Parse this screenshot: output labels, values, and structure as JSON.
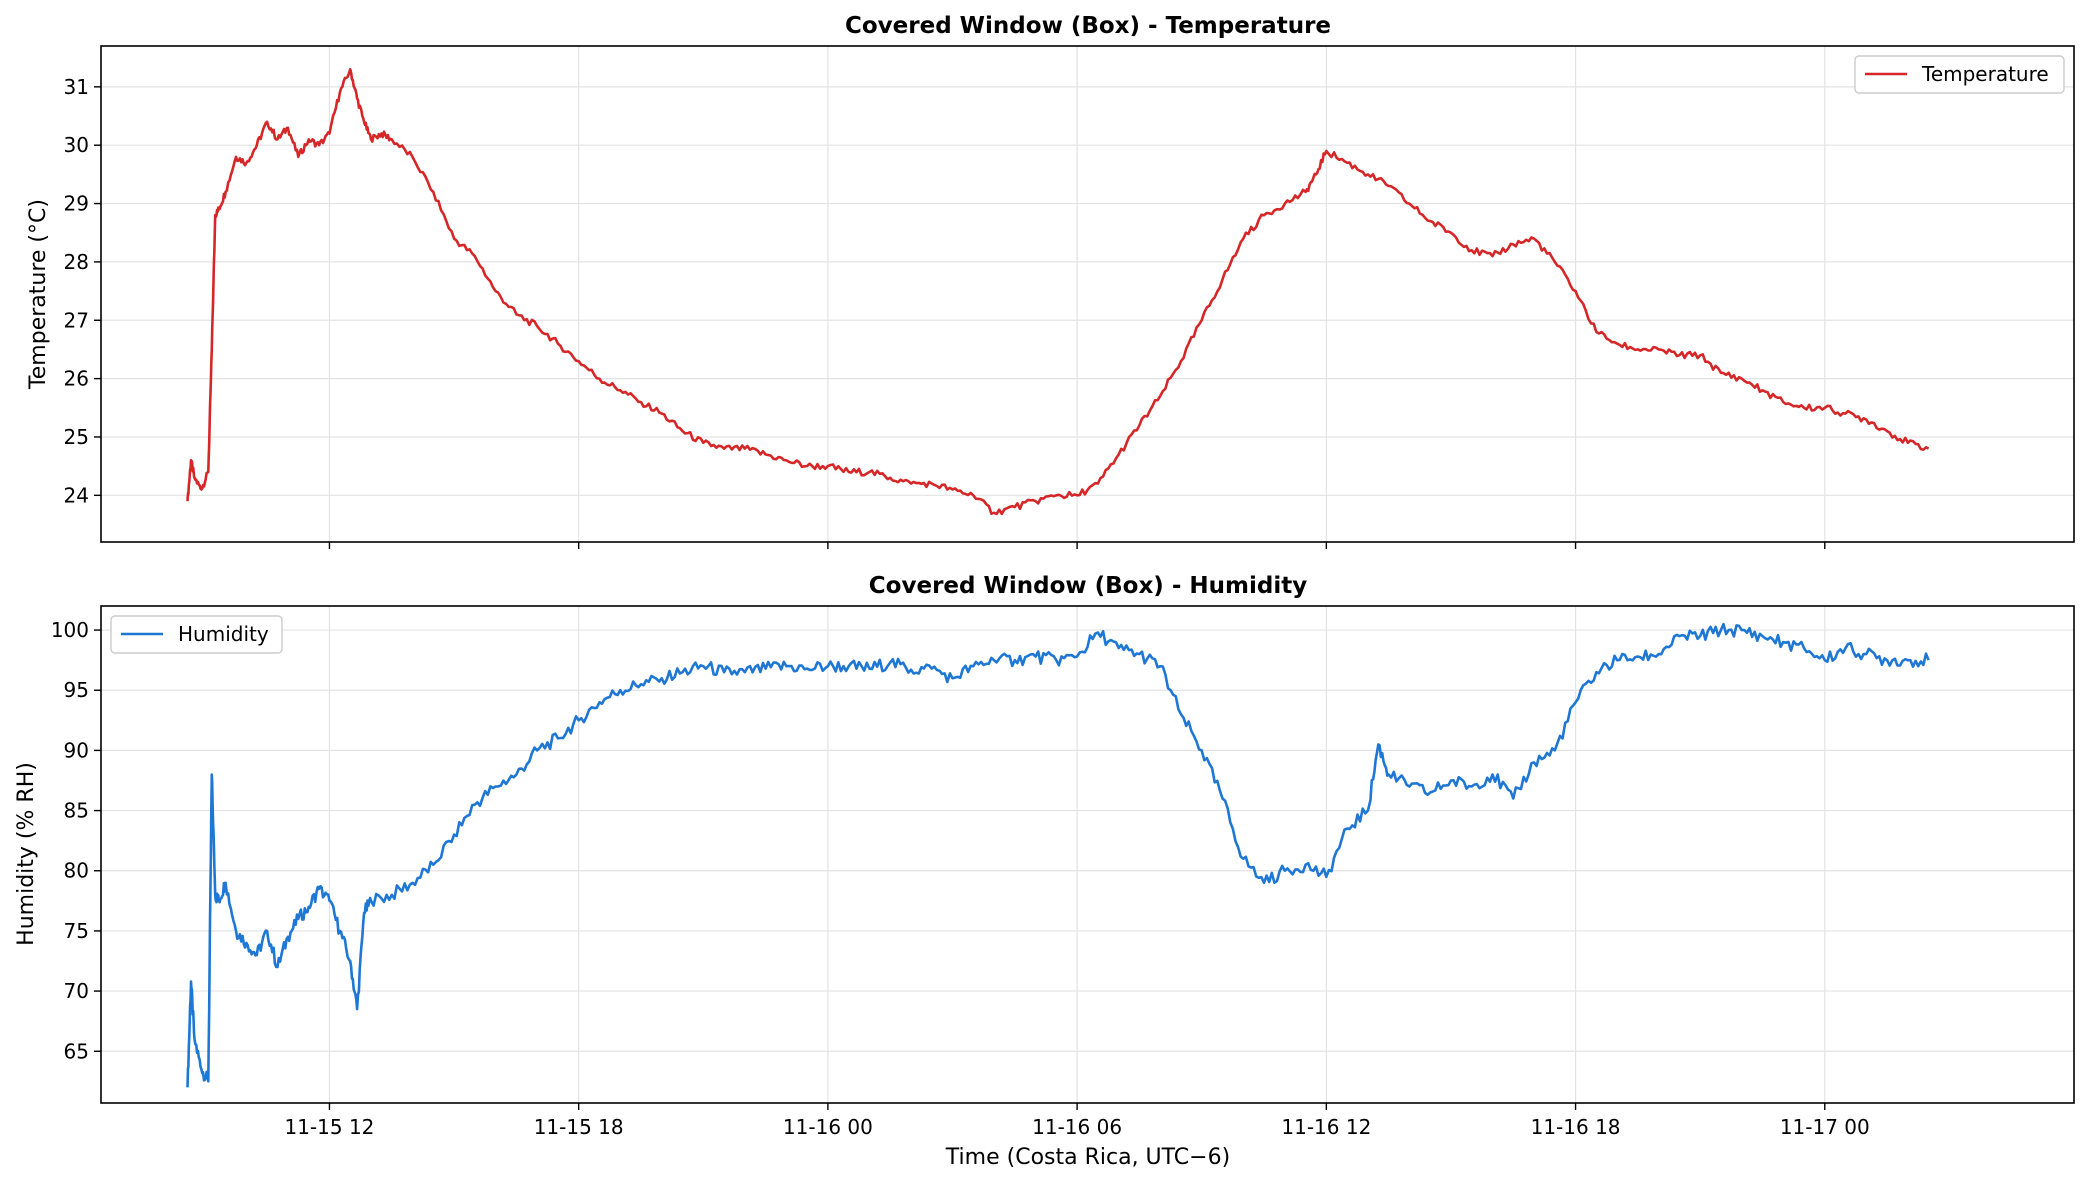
{
  "chart_data": [
    {
      "type": "line",
      "title": "Covered Window (Box) - Temperature",
      "xlabel": "",
      "ylabel": "Temperature (°C)",
      "ylim": [
        23.2,
        31.7
      ],
      "yticks": [
        24,
        25,
        26,
        27,
        28,
        29,
        30,
        31
      ],
      "xlim": [
        "2025-11-15 06:30",
        "2025-11-17 06:00"
      ],
      "xticks": [
        "11-15 12",
        "11-15 18",
        "11-16 00",
        "11-16 06",
        "11-16 12",
        "11-16 18",
        "11-17 00"
      ],
      "xtick_labels_visible": false,
      "grid": true,
      "legend": "top-right",
      "series": [
        {
          "name": "Temperature",
          "color": "#d62728",
          "x": [
            "2025-11-15 08:35",
            "2025-11-15 08:40",
            "2025-11-15 08:45",
            "2025-11-15 08:55",
            "2025-11-15 09:05",
            "2025-11-15 09:10",
            "2025-11-15 09:15",
            "2025-11-15 09:20",
            "2025-11-15 09:30",
            "2025-11-15 09:45",
            "2025-11-15 10:00",
            "2025-11-15 10:15",
            "2025-11-15 10:30",
            "2025-11-15 10:45",
            "2025-11-15 11:00",
            "2025-11-15 11:15",
            "2025-11-15 11:30",
            "2025-11-15 11:45",
            "2025-11-15 12:00",
            "2025-11-15 12:15",
            "2025-11-15 12:30",
            "2025-11-15 12:40",
            "2025-11-15 12:50",
            "2025-11-15 13:00",
            "2025-11-15 13:15",
            "2025-11-15 13:30",
            "2025-11-15 14:00",
            "2025-11-15 14:30",
            "2025-11-15 15:00",
            "2025-11-15 15:30",
            "2025-11-15 16:00",
            "2025-11-15 16:30",
            "2025-11-15 17:00",
            "2025-11-15 17:30",
            "2025-11-15 18:00",
            "2025-11-15 18:30",
            "2025-11-15 19:00",
            "2025-11-15 19:30",
            "2025-11-15 20:00",
            "2025-11-15 20:30",
            "2025-11-15 21:00",
            "2025-11-15 21:30",
            "2025-11-15 22:00",
            "2025-11-15 22:30",
            "2025-11-15 23:00",
            "2025-11-15 23:30",
            "2025-11-16 00:00",
            "2025-11-16 00:30",
            "2025-11-16 01:00",
            "2025-11-16 01:30",
            "2025-11-16 02:00",
            "2025-11-16 02:30",
            "2025-11-16 03:00",
            "2025-11-16 03:30",
            "2025-11-16 04:00",
            "2025-11-16 04:30",
            "2025-11-16 05:00",
            "2025-11-16 05:30",
            "2025-11-16 06:00",
            "2025-11-16 06:30",
            "2025-11-16 07:00",
            "2025-11-16 07:30",
            "2025-11-16 08:00",
            "2025-11-16 08:30",
            "2025-11-16 09:00",
            "2025-11-16 09:30",
            "2025-11-16 10:00",
            "2025-11-16 10:30",
            "2025-11-16 11:00",
            "2025-11-16 11:30",
            "2025-11-16 11:45",
            "2025-11-16 12:00",
            "2025-11-16 12:30",
            "2025-11-16 13:00",
            "2025-11-16 13:30",
            "2025-11-16 14:00",
            "2025-11-16 14:30",
            "2025-11-16 15:00",
            "2025-11-16 15:30",
            "2025-11-16 16:00",
            "2025-11-16 16:30",
            "2025-11-16 17:00",
            "2025-11-16 17:30",
            "2025-11-16 18:00",
            "2025-11-16 18:30",
            "2025-11-16 19:00",
            "2025-11-16 19:30",
            "2025-11-16 20:00",
            "2025-11-16 20:30",
            "2025-11-16 21:00",
            "2025-11-16 21:30",
            "2025-11-16 22:00",
            "2025-11-16 22:30",
            "2025-11-16 23:00",
            "2025-11-16 23:30",
            "2025-11-17 00:00",
            "2025-11-17 00:30",
            "2025-11-17 01:00",
            "2025-11-17 01:30",
            "2025-11-17 02:00",
            "2025-11-17 02:30"
          ],
          "values": [
            23.9,
            24.6,
            24.3,
            24.1,
            24.4,
            26.5,
            28.8,
            28.9,
            29.2,
            29.8,
            29.7,
            30.0,
            30.4,
            30.1,
            30.3,
            29.8,
            30.1,
            30.0,
            30.2,
            30.9,
            31.3,
            30.8,
            30.4,
            30.1,
            30.2,
            30.1,
            29.8,
            29.2,
            28.4,
            28.1,
            27.5,
            27.1,
            26.9,
            26.6,
            26.3,
            26.0,
            25.8,
            25.6,
            25.4,
            25.1,
            24.9,
            24.8,
            24.8,
            24.7,
            24.6,
            24.5,
            24.5,
            24.4,
            24.4,
            24.3,
            24.2,
            24.2,
            24.1,
            24.0,
            23.7,
            23.8,
            23.9,
            24.0,
            24.0,
            24.2,
            24.7,
            25.2,
            25.7,
            26.3,
            27.0,
            27.7,
            28.4,
            28.8,
            29.0,
            29.2,
            29.5,
            29.9,
            29.7,
            29.5,
            29.3,
            29.0,
            28.7,
            28.5,
            28.2,
            28.1,
            28.3,
            28.4,
            28.0,
            27.5,
            26.8,
            26.6,
            26.5,
            26.5,
            26.4,
            26.4,
            26.1,
            26.0,
            25.8,
            25.6,
            25.5,
            25.5,
            25.4,
            25.3,
            25.1,
            24.9,
            24.8
          ]
        }
      ]
    },
    {
      "type": "line",
      "title": "Covered Window (Box) - Humidity",
      "xlabel": "Time (Costa Rica, UTC−6)",
      "ylabel": "Humidity (% RH)",
      "ylim": [
        60.7,
        102.0
      ],
      "yticks": [
        65,
        70,
        75,
        80,
        85,
        90,
        95,
        100
      ],
      "xlim": [
        "2025-11-15 06:30",
        "2025-11-17 06:00"
      ],
      "xticks": [
        "11-15 12",
        "11-15 18",
        "11-16 00",
        "11-16 06",
        "11-16 12",
        "11-16 18",
        "11-17 00"
      ],
      "grid": true,
      "legend": "top-left",
      "series": [
        {
          "name": "Humidity",
          "color": "#1f77d4",
          "x": [
            "2025-11-15 08:35",
            "2025-11-15 08:40",
            "2025-11-15 08:45",
            "2025-11-15 08:55",
            "2025-11-15 09:05",
            "2025-11-15 09:10",
            "2025-11-15 09:15",
            "2025-11-15 09:20",
            "2025-11-15 09:30",
            "2025-11-15 09:45",
            "2025-11-15 10:00",
            "2025-11-15 10:15",
            "2025-11-15 10:30",
            "2025-11-15 10:45",
            "2025-11-15 11:00",
            "2025-11-15 11:15",
            "2025-11-15 11:30",
            "2025-11-15 11:45",
            "2025-11-15 12:00",
            "2025-11-15 12:15",
            "2025-11-15 12:30",
            "2025-11-15 12:40",
            "2025-11-15 12:50",
            "2025-11-15 13:00",
            "2025-11-15 13:30",
            "2025-11-15 14:00",
            "2025-11-15 14:30",
            "2025-11-15 15:00",
            "2025-11-15 15:30",
            "2025-11-15 16:00",
            "2025-11-15 16:30",
            "2025-11-15 17:00",
            "2025-11-15 17:30",
            "2025-11-15 18:00",
            "2025-11-15 18:30",
            "2025-11-15 19:00",
            "2025-11-15 19:30",
            "2025-11-15 20:00",
            "2025-11-15 20:30",
            "2025-11-15 21:00",
            "2025-11-15 21:30",
            "2025-11-15 22:00",
            "2025-11-15 22:30",
            "2025-11-15 23:00",
            "2025-11-15 23:30",
            "2025-11-16 00:00",
            "2025-11-16 00:30",
            "2025-11-16 01:00",
            "2025-11-16 01:30",
            "2025-11-16 02:00",
            "2025-11-16 02:30",
            "2025-11-16 03:00",
            "2025-11-16 03:30",
            "2025-11-16 04:00",
            "2025-11-16 04:30",
            "2025-11-16 05:00",
            "2025-11-16 05:30",
            "2025-11-16 06:00",
            "2025-11-16 06:30",
            "2025-11-16 07:00",
            "2025-11-16 07:30",
            "2025-11-16 08:00",
            "2025-11-16 08:30",
            "2025-11-16 09:00",
            "2025-11-16 09:30",
            "2025-11-16 10:00",
            "2025-11-16 10:30",
            "2025-11-16 11:00",
            "2025-11-16 11:30",
            "2025-11-16 12:00",
            "2025-11-16 12:30",
            "2025-11-16 13:00",
            "2025-11-16 13:15",
            "2025-11-16 13:30",
            "2025-11-16 14:00",
            "2025-11-16 14:30",
            "2025-11-16 15:00",
            "2025-11-16 15:30",
            "2025-11-16 16:00",
            "2025-11-16 16:30",
            "2025-11-16 17:00",
            "2025-11-16 17:30",
            "2025-11-16 18:00",
            "2025-11-16 18:30",
            "2025-11-16 19:00",
            "2025-11-16 19:30",
            "2025-11-16 20:00",
            "2025-11-16 20:30",
            "2025-11-16 21:00",
            "2025-11-16 21:30",
            "2025-11-16 22:00",
            "2025-11-16 22:30",
            "2025-11-16 23:00",
            "2025-11-16 23:30",
            "2025-11-17 00:00",
            "2025-11-17 00:30",
            "2025-11-17 01:00",
            "2025-11-17 01:30",
            "2025-11-17 02:00",
            "2025-11-17 02:30"
          ],
          "values": [
            62.0,
            70.8,
            66.0,
            63.5,
            62.5,
            88.0,
            78.0,
            77.5,
            79.0,
            75.0,
            74.0,
            73.0,
            75.0,
            72.0,
            74.5,
            76.0,
            77.0,
            78.5,
            77.5,
            75.0,
            72.5,
            68.5,
            76.5,
            77.5,
            78.0,
            79.0,
            80.5,
            83.0,
            85.5,
            87.0,
            88.0,
            90.0,
            91.0,
            92.5,
            94.0,
            95.0,
            95.5,
            96.0,
            96.5,
            97.0,
            96.5,
            96.5,
            96.8,
            97.0,
            96.8,
            97.0,
            97.0,
            96.8,
            97.3,
            96.7,
            96.8,
            96.0,
            97.0,
            97.5,
            97.5,
            97.8,
            97.5,
            97.8,
            99.8,
            98.5,
            98.0,
            97.0,
            93.0,
            90.0,
            86.0,
            81.0,
            79.0,
            80.0,
            80.5,
            79.5,
            83.5,
            85.0,
            90.5,
            88.0,
            87.0,
            86.5,
            87.5,
            87.0,
            88.0,
            86.0,
            89.0,
            90.0,
            94.0,
            96.5,
            97.5,
            97.8,
            98.0,
            99.5,
            99.5,
            100.0,
            100.0,
            99.5,
            99.0,
            98.5,
            97.5,
            98.5,
            98.0,
            97.5,
            97.5,
            97.5
          ]
        }
      ]
    }
  ]
}
